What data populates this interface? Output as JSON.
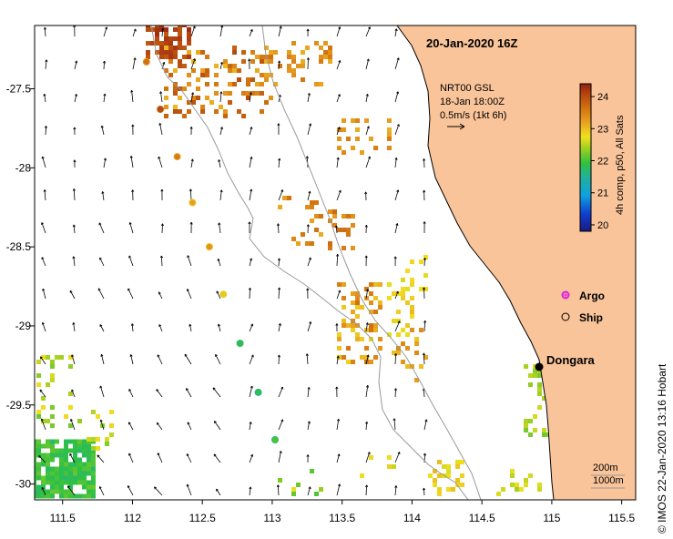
{
  "map": {
    "title": "20-Jan-2020 16Z",
    "lon_range": [
      111.3,
      115.6
    ],
    "lat_range": [
      -30.1,
      -27.1
    ],
    "x_ticks": [
      "111.5",
      "112",
      "112.5",
      "113",
      "113.5",
      "114",
      "114.5",
      "115",
      "115.5"
    ],
    "x_tick_values": [
      111.5,
      112,
      112.5,
      113,
      113.5,
      114,
      114.5,
      115,
      115.5
    ],
    "y_ticks": [
      "-27.5",
      "-28",
      "-28.5",
      "-29",
      "-29.5",
      "-30"
    ],
    "y_tick_values": [
      -27.5,
      -28,
      -28.5,
      -29,
      -29.5,
      -30
    ],
    "land_color": "#f9c49a",
    "coast_color": "#000000",
    "isobath_color": "#999999"
  },
  "current_info": {
    "line1": "NRT00 GSL",
    "line2": "18-Jan 18:00Z",
    "line3": "0.5m/s (1kt 6h)"
  },
  "colorbar": {
    "label": "4h comp, p50, All Sats",
    "ticks": [
      "24",
      "23",
      "22",
      "21",
      "20"
    ],
    "tick_values": [
      24,
      23,
      22,
      21,
      20
    ],
    "range": [
      19.8,
      24.4
    ]
  },
  "legend": {
    "argo_label": "Argo",
    "argo_color": "#dd22dd",
    "ship_label": "Ship"
  },
  "place": {
    "name": "Dongara",
    "lon": 114.93,
    "lat": -29.25
  },
  "isobaths": {
    "label_200": "200m",
    "label_1000": "1000m"
  },
  "credit": "© IMOS 22-Jan-2020 13:16 Hobart",
  "drifter_track": [
    {
      "lon": 112.1,
      "lat": -27.33,
      "sst": 23.6
    },
    {
      "lon": 112.2,
      "lat": -27.63,
      "sst": 24.0
    },
    {
      "lon": 112.32,
      "lat": -27.93,
      "sst": 23.5
    },
    {
      "lon": 112.43,
      "lat": -28.22,
      "sst": 23.2
    },
    {
      "lon": 112.55,
      "lat": -28.5,
      "sst": 23.3
    },
    {
      "lon": 112.65,
      "lat": -28.8,
      "sst": 22.9
    },
    {
      "lon": 112.77,
      "lat": -29.11,
      "sst": 22.0
    },
    {
      "lon": 112.9,
      "lat": -29.42,
      "sst": 21.9
    },
    {
      "lon": 113.02,
      "lat": -29.72,
      "sst": 22.1
    }
  ]
}
